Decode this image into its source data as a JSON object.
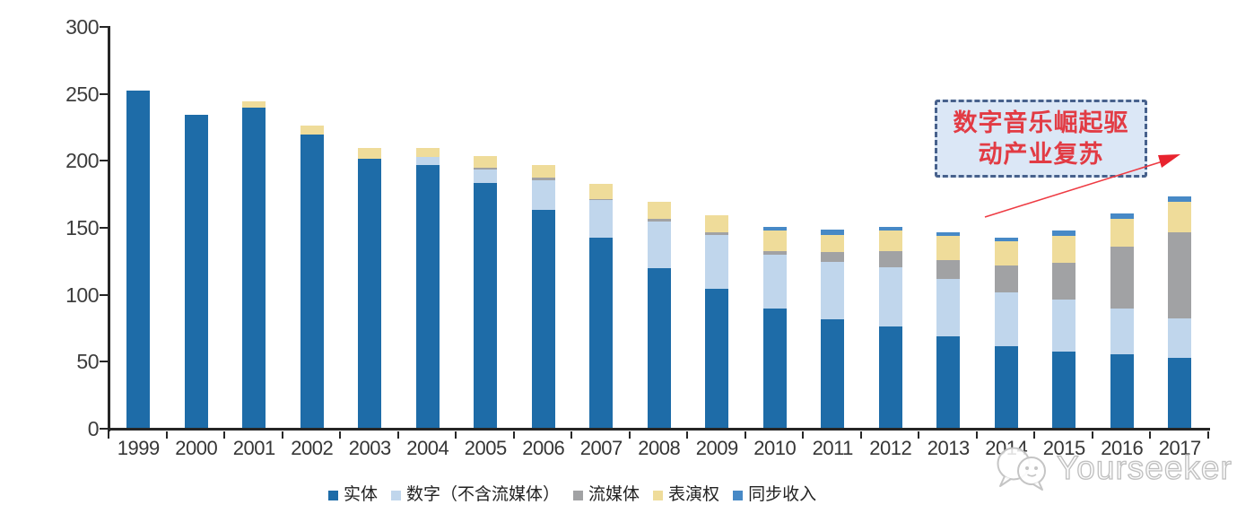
{
  "chart_data": {
    "type": "bar",
    "subtype": "stacked-vertical",
    "title": "",
    "xlabel": "",
    "ylabel": "",
    "ylim": [
      0,
      300
    ],
    "yticks": [
      0,
      50,
      100,
      150,
      200,
      250,
      300
    ],
    "grid": false,
    "legend_position": "bottom",
    "categories": [
      "1999",
      "2000",
      "2001",
      "2002",
      "2003",
      "2004",
      "2005",
      "2006",
      "2007",
      "2008",
      "2009",
      "2010",
      "2011",
      "2012",
      "2013",
      "2014",
      "2015",
      "2016",
      "2017"
    ],
    "series": [
      {
        "name": "实体",
        "color": "#1E6CA8",
        "values": [
          252,
          234,
          239,
          219,
          201,
          196,
          183,
          163,
          142,
          119,
          104,
          89,
          81,
          76,
          68,
          61,
          57,
          55,
          52
        ]
      },
      {
        "name": "数字（不含流媒体）",
        "color": "#C0D6EC",
        "values": [
          0,
          0,
          0,
          0,
          0,
          6,
          10,
          22,
          28,
          35,
          40,
          40,
          43,
          44,
          43,
          40,
          39,
          34,
          30
        ]
      },
      {
        "name": "流媒体",
        "color": "#A1A2A4",
        "values": [
          0,
          0,
          0,
          0,
          0,
          0,
          1,
          2,
          1,
          2,
          2,
          3,
          7,
          12,
          14,
          20,
          27,
          46,
          64
        ]
      },
      {
        "name": "表演权",
        "color": "#EFDC9A",
        "values": [
          0,
          0,
          5,
          7,
          8,
          7,
          9,
          9,
          11,
          13,
          13,
          15,
          13,
          15,
          18,
          18,
          20,
          21,
          23
        ]
      },
      {
        "name": "同步收入",
        "color": "#4789C6",
        "values": [
          0,
          0,
          0,
          0,
          0,
          0,
          0,
          0,
          0,
          0,
          0,
          3,
          4,
          3,
          3,
          3,
          4,
          4,
          4
        ]
      }
    ],
    "totals": [
      252,
      234,
      244,
      226,
      209,
      209,
      203,
      196,
      182,
      169,
      159,
      150,
      148,
      150,
      146,
      142,
      147,
      160,
      173
    ]
  },
  "axis": {
    "tick_color": "#262626"
  },
  "annotation": {
    "line1": "数字音乐崛起驱",
    "line2": "动产业复苏",
    "text_color": "#e23b44",
    "box_fill": "#dbe7f6",
    "box_border": "#47618c",
    "arrow_color": "#ee3b43"
  },
  "watermark": {
    "text": "Yourseeker"
  }
}
